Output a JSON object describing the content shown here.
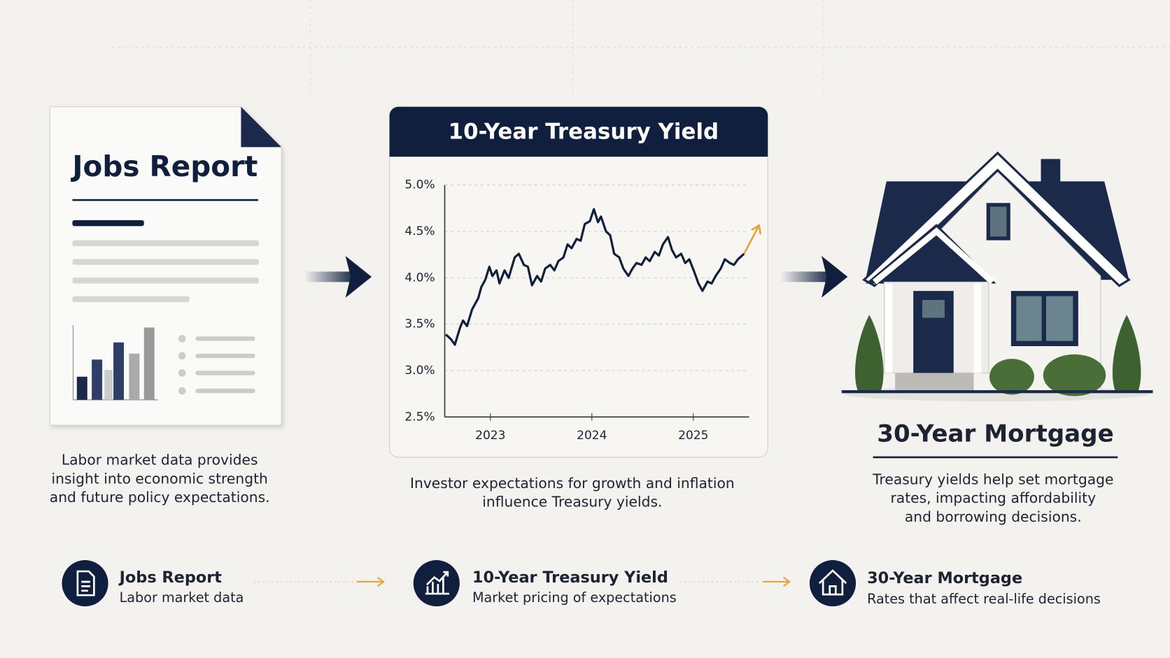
{
  "chart_data": {
    "type": "line",
    "title": "10-Year Treasury Yield",
    "x": [
      2022.56,
      2022.61,
      2022.65,
      2022.7,
      2022.73,
      2022.77,
      2022.82,
      2022.88,
      2022.91,
      2022.95,
      2022.99,
      2023.02,
      2023.06,
      2023.09,
      2023.14,
      2023.18,
      2023.24,
      2023.28,
      2023.33,
      2023.37,
      2023.41,
      2023.46,
      2023.5,
      2023.54,
      2023.59,
      2023.63,
      2023.67,
      2023.72,
      2023.76,
      2023.8,
      2023.85,
      2023.89,
      2023.93,
      2023.98,
      2024.02,
      2024.06,
      2024.09,
      2024.14,
      2024.18,
      2024.22,
      2024.27,
      2024.31,
      2024.36,
      2024.4,
      2024.44,
      2024.49,
      2024.53,
      2024.57,
      2024.62,
      2024.66,
      2024.7,
      2024.75,
      2024.79,
      2024.83,
      2024.88,
      2024.92,
      2024.96,
      2025.01,
      2025.05,
      2025.09,
      2025.14,
      2025.18,
      2025.22,
      2025.27,
      2025.31,
      2025.36,
      2025.4,
      2025.44,
      2025.5
    ],
    "values": [
      3.39,
      3.34,
      3.28,
      3.46,
      3.54,
      3.48,
      3.66,
      3.78,
      3.9,
      3.98,
      4.12,
      4.02,
      4.08,
      3.94,
      4.08,
      4.0,
      4.22,
      4.26,
      4.14,
      4.12,
      3.92,
      4.02,
      3.96,
      4.1,
      4.14,
      4.08,
      4.18,
      4.22,
      4.36,
      4.32,
      4.42,
      4.4,
      4.58,
      4.61,
      4.74,
      4.6,
      4.66,
      4.5,
      4.46,
      4.26,
      4.22,
      4.1,
      4.02,
      4.1,
      4.16,
      4.14,
      4.22,
      4.18,
      4.28,
      4.24,
      4.36,
      4.44,
      4.3,
      4.22,
      4.26,
      4.16,
      4.2,
      4.06,
      3.94,
      3.86,
      3.96,
      3.94,
      4.02,
      4.1,
      4.2,
      4.16,
      4.14,
      4.2,
      4.26
    ],
    "color": "#0f1f3d",
    "xlim": [
      2022.55,
      2025.55
    ],
    "xticks": [
      2023,
      2024,
      2025
    ],
    "ylim": [
      2.5,
      5.0
    ],
    "yticks": [
      {
        "value": 2.5,
        "label": "2.5%"
      },
      {
        "value": 3.0,
        "label": "3.0%"
      },
      {
        "value": 3.5,
        "label": "3.5%"
      },
      {
        "value": 4.0,
        "label": "4.0%"
      },
      {
        "value": 4.5,
        "label": "4.5%"
      },
      {
        "value": 5.0,
        "label": "5.0%"
      }
    ],
    "grid": true
  },
  "jobs": {
    "title": "Jobs Report",
    "caption": [
      "Labor market data provides",
      "insight into economic strength",
      "and future policy expectations."
    ]
  },
  "treasury": {
    "caption": [
      "Investor expectations for growth and inflation",
      "influence Treasury yields."
    ]
  },
  "mortgage": {
    "title": "30-Year Mortgage",
    "caption": [
      "Treasury yields help set mortgage",
      "rates, impacting affordability",
      "and borrowing decisions."
    ]
  },
  "steps": [
    {
      "title": "Jobs Report",
      "subtitle": "Labor market data"
    },
    {
      "title": "10-Year Treasury Yield",
      "subtitle": "Market pricing of expectations"
    },
    {
      "title": "30-Year Mortgage",
      "subtitle": "Rates that affect real-life decisions"
    }
  ]
}
